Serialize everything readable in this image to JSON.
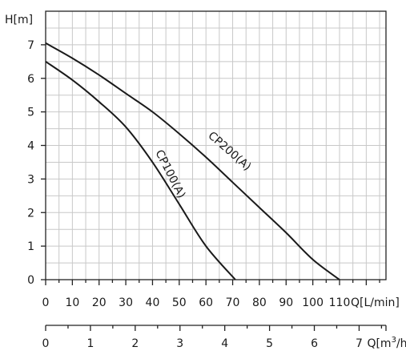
{
  "chart_data": {
    "type": "line",
    "xlabel": "Q[L/min]",
    "ylabel": "H[m]",
    "xlim": [
      0,
      110
    ],
    "ylim": [
      0,
      8
    ],
    "x_ticks": [
      "0",
      "10",
      "20",
      "30",
      "40",
      "50",
      "60",
      "70",
      "80",
      "90",
      "100",
      "110"
    ],
    "y_ticks": [
      "0",
      "1",
      "2",
      "3",
      "4",
      "5",
      "6",
      "7"
    ],
    "grid": true,
    "secondary_x_axis": {
      "label": "Q[m³/h]",
      "label_text": "Q[m",
      "label_sup": "3",
      "label_tail": "/h]",
      "lim": [
        0,
        7.6
      ],
      "ticks": [
        "0",
        "1",
        "2",
        "3",
        "4",
        "5",
        "6",
        "7"
      ]
    },
    "series": [
      {
        "name": "CP100(A)",
        "x": [
          0,
          10,
          20,
          30,
          40,
          50,
          60,
          71
        ],
        "y": [
          6.5,
          5.95,
          5.3,
          4.55,
          3.5,
          2.25,
          1.0,
          0
        ]
      },
      {
        "name": "CP200(A)",
        "x": [
          0,
          10,
          20,
          30,
          40,
          50,
          60,
          70,
          80,
          90,
          100,
          110
        ],
        "y": [
          7.05,
          6.6,
          6.1,
          5.55,
          5.0,
          4.35,
          3.65,
          2.9,
          2.15,
          1.4,
          0.6,
          0
        ]
      }
    ]
  }
}
